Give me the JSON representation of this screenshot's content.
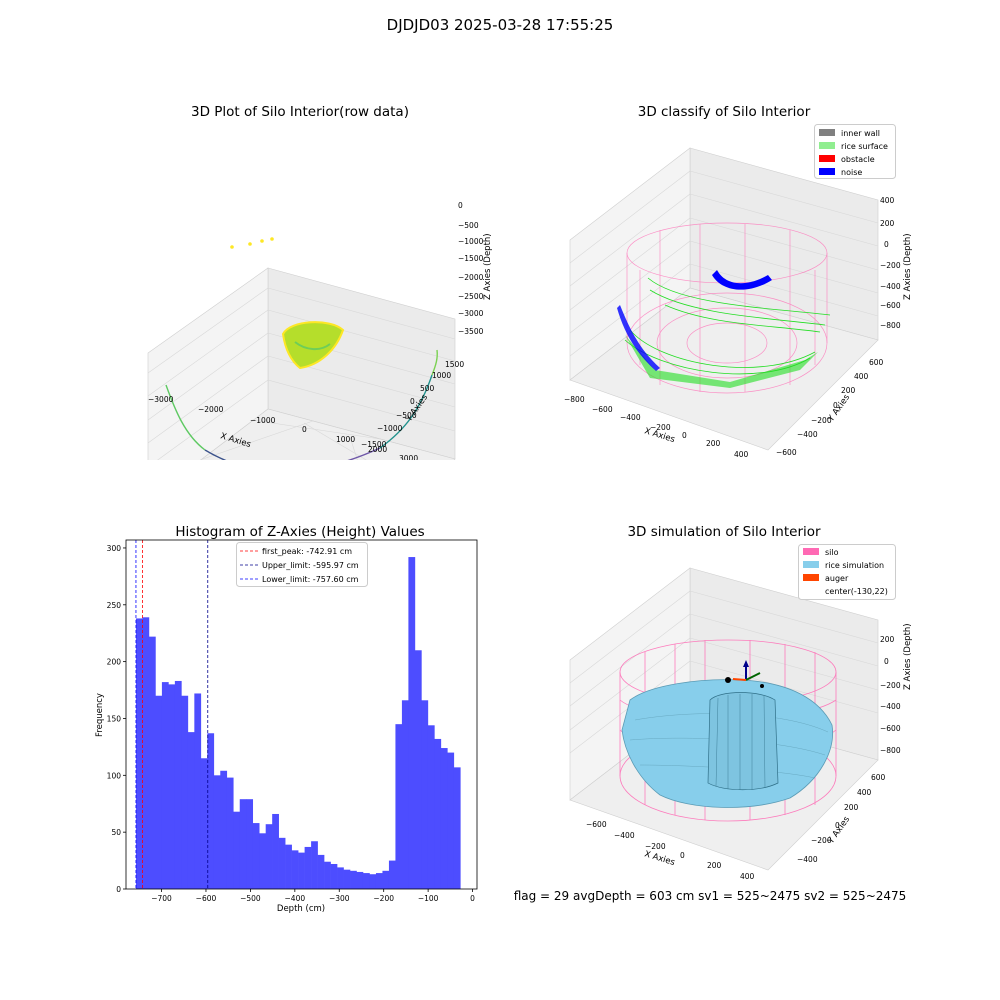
{
  "suptitle": "DJDJD03 2025-03-28 17:55:25",
  "status_line": "flag = 29  avgDepth = 603 cm  sv1 = 525~2475  sv2 = 525~2475",
  "chart_data": [
    {
      "type": "scatter",
      "projection": "3d",
      "title": "3D Plot of Silo Interior(row data)",
      "xlabel": "X Axies",
      "ylabel": "Y Axies",
      "zlabel": "Z Axies (Depth)",
      "xticks": [
        "−3000",
        "−2000",
        "−1000",
        "0",
        "1000",
        "2000",
        "3000"
      ],
      "yticks": [
        "1500",
        "1000",
        "500",
        "0",
        "−500",
        "−1000",
        "−1500"
      ],
      "zticks": [
        "0",
        "−500",
        "−1000",
        "−1500",
        "−2000",
        "−2500",
        "−3000",
        "−3500"
      ],
      "colormap": "viridis",
      "grid": true
    },
    {
      "type": "scatter",
      "projection": "3d",
      "title": "3D classify of Silo Interior",
      "xlabel": "X Axies",
      "ylabel": "Y Axies",
      "zlabel": "Z Axies (Depth)",
      "xticks": [
        "−800",
        "−600",
        "−400",
        "−200",
        "0",
        "200",
        "400"
      ],
      "yticks": [
        "600",
        "400",
        "200",
        "0",
        "−200",
        "−400",
        "−600"
      ],
      "zticks": [
        "400",
        "200",
        "0",
        "−200",
        "−400",
        "−600",
        "−800"
      ],
      "legend_position": "top-right",
      "legend": [
        {
          "label": "inner wall",
          "color": "#808080"
        },
        {
          "label": "rice surface",
          "color": "#90ee90"
        },
        {
          "label": "obstacle",
          "color": "#ff0000"
        },
        {
          "label": "noise",
          "color": "#0000ff"
        }
      ],
      "grid": true
    },
    {
      "type": "bar",
      "subtype": "histogram",
      "title": "Histogram of Z-Axies (Height) Values",
      "xlabel": "Depth (cm)",
      "ylabel": "Frequency",
      "xlim": [
        -780,
        10
      ],
      "ylim": [
        0,
        307
      ],
      "xticks": [
        -700,
        -600,
        -500,
        -400,
        -300,
        -200,
        -100,
        0
      ],
      "yticks": [
        0,
        50,
        100,
        150,
        200,
        250,
        300
      ],
      "bar_color": "#4d4dff",
      "bin_start": -757.6,
      "bin_width": 14.6,
      "values": [
        238,
        239,
        222,
        170,
        182,
        180,
        183,
        170,
        138,
        172,
        115,
        137,
        100,
        104,
        98,
        68,
        79,
        79,
        58,
        49,
        57,
        66,
        45,
        39,
        34,
        32,
        37,
        42,
        30,
        24,
        22,
        19,
        17,
        16,
        15,
        14,
        13,
        14,
        16,
        25,
        145,
        166,
        292,
        210,
        166,
        144,
        132,
        124,
        120,
        107
      ],
      "vlines": [
        {
          "label": "first_peak: -742.91 cm",
          "value": -742.91,
          "color": "#ff0000"
        },
        {
          "label": "Upper_limit: -595.97 cm",
          "value": -595.97,
          "color": "#00008b"
        },
        {
          "label": "Lower_limit: -757.60 cm",
          "value": -757.6,
          "color": "#0000ff"
        }
      ],
      "legend_position": "top-center",
      "grid": false
    },
    {
      "type": "surface",
      "projection": "3d",
      "title": "3D simulation of Silo Interior",
      "xlabel": "X Axies",
      "ylabel": "Y Axies",
      "zlabel": "Z Axies (Depth)",
      "xticks": [
        "−600",
        "−400",
        "−200",
        "0",
        "200",
        "400"
      ],
      "yticks": [
        "600",
        "400",
        "200",
        "0",
        "−200",
        "−400"
      ],
      "zticks": [
        "200",
        "0",
        "−200",
        "−400",
        "−600",
        "−800"
      ],
      "legend_position": "top-right",
      "legend": [
        {
          "label": "silo",
          "color": "#ff69b4"
        },
        {
          "label": "rice simulation",
          "color": "#87ceeb"
        },
        {
          "label": "auger",
          "color": "#ff4500"
        },
        {
          "label": "center(-130,22)",
          "color": ""
        }
      ],
      "grid": true
    }
  ]
}
